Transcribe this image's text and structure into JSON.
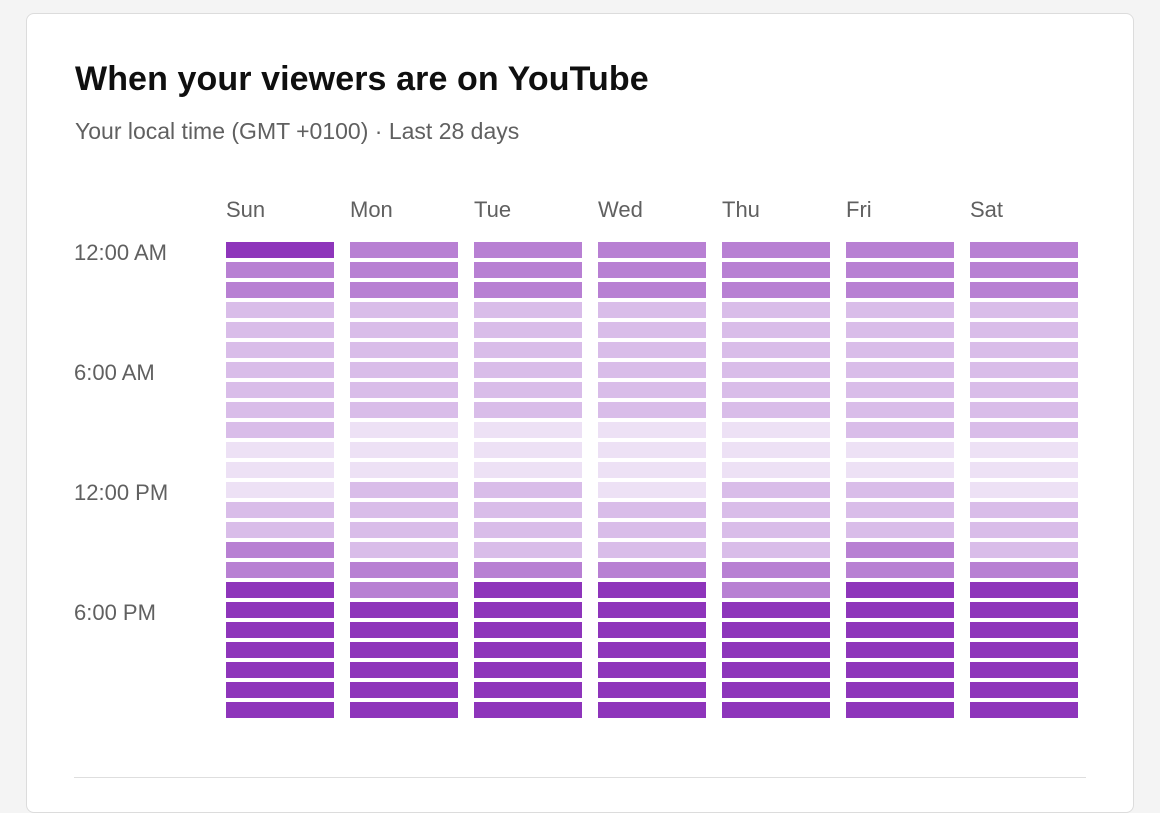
{
  "card": {
    "title": "When your viewers are on YouTube",
    "subtitle": "Your local time (GMT +0100) · Last 28 days"
  },
  "chart_data": {
    "type": "heatmap",
    "days": [
      "Sun",
      "Mon",
      "Tue",
      "Wed",
      "Thu",
      "Fri",
      "Sat"
    ],
    "time_labels": [
      "12:00 AM",
      "6:00 AM",
      "12:00 PM",
      "6:00 PM"
    ],
    "hours_per_day": 24,
    "levels": {
      "1": "#ede1f5",
      "2": "#d9bde9",
      "3": "#b880d3",
      "4": "#8e35bb"
    },
    "values": {
      "Sun": [
        4,
        3,
        3,
        2,
        2,
        2,
        2,
        2,
        2,
        2,
        1,
        1,
        1,
        2,
        2,
        3,
        3,
        4,
        4,
        4,
        4,
        4,
        4,
        4
      ],
      "Mon": [
        3,
        3,
        3,
        2,
        2,
        2,
        2,
        2,
        2,
        1,
        1,
        1,
        2,
        2,
        2,
        2,
        3,
        3,
        4,
        4,
        4,
        4,
        4,
        4
      ],
      "Tue": [
        3,
        3,
        3,
        2,
        2,
        2,
        2,
        2,
        2,
        1,
        1,
        1,
        2,
        2,
        2,
        2,
        3,
        4,
        4,
        4,
        4,
        4,
        4,
        4
      ],
      "Wed": [
        3,
        3,
        3,
        2,
        2,
        2,
        2,
        2,
        2,
        1,
        1,
        1,
        1,
        2,
        2,
        2,
        3,
        4,
        4,
        4,
        4,
        4,
        4,
        4
      ],
      "Thu": [
        3,
        3,
        3,
        2,
        2,
        2,
        2,
        2,
        2,
        1,
        1,
        1,
        2,
        2,
        2,
        2,
        3,
        3,
        4,
        4,
        4,
        4,
        4,
        4
      ],
      "Fri": [
        3,
        3,
        3,
        2,
        2,
        2,
        2,
        2,
        2,
        2,
        1,
        1,
        2,
        2,
        2,
        3,
        3,
        4,
        4,
        4,
        4,
        4,
        4,
        4
      ],
      "Sat": [
        3,
        3,
        3,
        2,
        2,
        2,
        2,
        2,
        2,
        2,
        1,
        1,
        1,
        2,
        2,
        2,
        3,
        4,
        4,
        4,
        4,
        4,
        4,
        4
      ]
    }
  }
}
